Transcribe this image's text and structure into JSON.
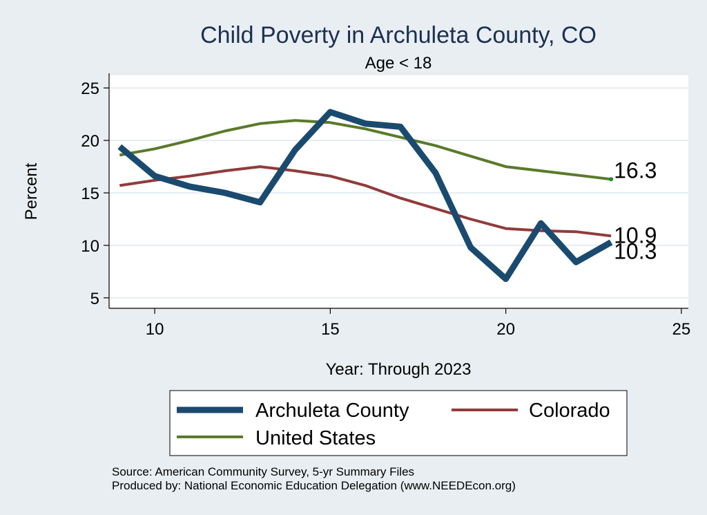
{
  "chart_data": {
    "type": "line",
    "title": "Child Poverty in Archuleta County, CO",
    "subtitle": "Age < 18",
    "xlabel": "Year: Through 2023",
    "ylabel": "Percent",
    "xlim": [
      8.7,
      25.2
    ],
    "ylim": [
      4.0,
      26.2
    ],
    "x_ticks": [
      10,
      15,
      20,
      25
    ],
    "y_ticks": [
      5,
      10,
      15,
      20,
      25
    ],
    "x_tick_labels": [
      "10",
      "15",
      "20",
      "25"
    ],
    "y_tick_labels": [
      "5",
      "10",
      "15",
      "20",
      "25"
    ],
    "grid": true,
    "legend_position": "bottom",
    "series": [
      {
        "name": "Archuleta County",
        "color": "#1b4a6f",
        "x": [
          9,
          10,
          11,
          12,
          13,
          14,
          15,
          16,
          17,
          18,
          19,
          20,
          21,
          22,
          23
        ],
        "values": [
          19.4,
          16.6,
          15.6,
          15.0,
          14.1,
          19.1,
          22.7,
          21.6,
          21.3,
          16.9,
          9.8,
          6.8,
          12.1,
          8.4,
          10.3
        ],
        "end_label": "10.3"
      },
      {
        "name": "Colorado",
        "color": "#903b3b",
        "x": [
          9,
          10,
          11,
          12,
          13,
          14,
          15,
          16,
          17,
          18,
          19,
          20,
          21,
          22,
          23
        ],
        "values": [
          15.7,
          16.2,
          16.6,
          17.1,
          17.5,
          17.1,
          16.6,
          15.7,
          14.5,
          13.5,
          12.5,
          11.6,
          11.4,
          11.3,
          10.9
        ],
        "end_label": "10.9"
      },
      {
        "name": "United States",
        "color": "#5a7a2a",
        "x": [
          9,
          10,
          11,
          12,
          13,
          14,
          15,
          16,
          17,
          18,
          19,
          20,
          21,
          22,
          23
        ],
        "values": [
          18.6,
          19.2,
          20.0,
          20.9,
          21.6,
          21.9,
          21.7,
          21.1,
          20.3,
          19.5,
          18.5,
          17.5,
          17.1,
          16.7,
          16.3
        ],
        "end_label": "16.3",
        "end_marker_color": "#1a8a2a"
      }
    ],
    "notes": [
      "Source: American Community Survey, 5-yr Summary Files",
      "Produced by: National Economic Education Delegation (www.NEEDEcon.org)"
    ]
  }
}
